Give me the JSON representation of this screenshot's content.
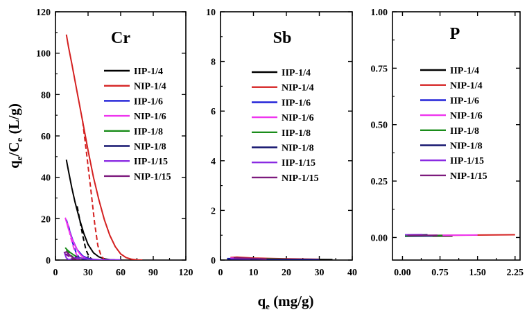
{
  "chart_data": {
    "type": "line",
    "ylabel": {
      "main": "q",
      "sub": "e",
      "mid": "/C",
      "sub2": "e",
      "tail": " (L/g)"
    },
    "xlabel": {
      "main": "q",
      "sub": "e",
      "tail": " (mg/g)"
    },
    "legend": [
      {
        "name": "IIP-1/4",
        "color": "#000000"
      },
      {
        "name": "NIP-1/4",
        "color": "#d42020"
      },
      {
        "name": "IIP-1/6",
        "color": "#1a1ad6"
      },
      {
        "name": "NIP-1/6",
        "color": "#ee35ee"
      },
      {
        "name": "IIP-1/8",
        "color": "#1a8c1a"
      },
      {
        "name": "NIP-1/8",
        "color": "#14146e"
      },
      {
        "name": "IIP-1/15",
        "color": "#8a2be2"
      },
      {
        "name": "NIP-1/15",
        "color": "#7d1a7d"
      }
    ],
    "panels": [
      {
        "title": "Cr",
        "xlim": [
          0,
          120
        ],
        "ylim": [
          0,
          120
        ],
        "xticks": [
          0,
          30,
          60,
          90,
          120
        ],
        "yticks": [
          0,
          20,
          40,
          60,
          80,
          100,
          120
        ],
        "series": [
          {
            "name": "IIP-1/4",
            "line": [
              [
                10,
                48.5
              ],
              [
                12,
                43
              ],
              [
                15,
                35
              ],
              [
                18,
                28
              ],
              [
                22,
                20
              ],
              [
                26,
                13
              ],
              [
                30,
                7.5
              ],
              [
                35,
                3.5
              ],
              [
                40,
                1.5
              ],
              [
                45,
                0.6
              ],
              [
                50,
                0.2
              ],
              [
                55,
                0.1
              ]
            ],
            "dashed": [
              [
                20,
                26
              ],
              [
                25,
                12
              ],
              [
                28,
                5
              ],
              [
                31,
                1.5
              ],
              [
                34,
                0.2
              ]
            ]
          },
          {
            "name": "NIP-1/4",
            "line": [
              [
                10,
                109
              ],
              [
                12,
                103
              ],
              [
                15,
                95
              ],
              [
                20,
                81
              ],
              [
                25,
                67
              ],
              [
                30,
                53
              ],
              [
                35,
                40
              ],
              [
                40,
                29
              ],
              [
                45,
                19.5
              ],
              [
                50,
                12
              ],
              [
                55,
                6.5
              ],
              [
                60,
                3
              ],
              [
                65,
                1.2
              ],
              [
                70,
                0.4
              ],
              [
                75,
                0.1
              ],
              [
                80,
                0
              ]
            ],
            "dashed": [
              [
                25,
                67
              ],
              [
                29,
                50
              ],
              [
                33,
                32
              ],
              [
                36,
                18
              ],
              [
                39,
                7
              ],
              [
                42,
                2
              ],
              [
                45,
                0.3
              ]
            ]
          },
          {
            "name": "IIP-1/6",
            "line": [
              [
                10,
                19.5
              ],
              [
                13,
                14
              ],
              [
                16,
                9.5
              ],
              [
                20,
                5
              ],
              [
                25,
                2
              ],
              [
                30,
                0.8
              ],
              [
                35,
                0.3
              ],
              [
                40,
                0.1
              ]
            ],
            "dashed": [
              [
                12,
                16.5
              ],
              [
                16,
                8
              ],
              [
                19,
                3.5
              ],
              [
                22,
                1
              ],
              [
                24,
                0.2
              ]
            ]
          },
          {
            "name": "NIP-1/6",
            "line": [
              [
                9,
                20.5
              ],
              [
                12,
                15
              ],
              [
                15,
                10.5
              ],
              [
                18,
                7
              ],
              [
                21,
                4
              ],
              [
                24,
                2
              ],
              [
                27,
                1
              ],
              [
                30,
                0.3
              ]
            ],
            "dashed": [
              [
                11,
                18
              ],
              [
                14,
                11
              ],
              [
                17,
                5.5
              ],
              [
                20,
                2
              ],
              [
                22,
                0.5
              ]
            ]
          },
          {
            "name": "IIP-1/8",
            "line": [
              [
                9,
                6
              ],
              [
                11,
                4.8
              ],
              [
                14,
                3.5
              ],
              [
                17,
                2.4
              ],
              [
                20,
                1.5
              ],
              [
                24,
                0.7
              ],
              [
                28,
                0.3
              ],
              [
                32,
                0.1
              ]
            ],
            "dashed": [
              [
                10,
                5
              ],
              [
                13,
                3
              ],
              [
                16,
                1.5
              ],
              [
                19,
                0.5
              ]
            ]
          },
          {
            "name": "NIP-1/8",
            "line": [
              [
                18,
                1.5
              ],
              [
                23,
                1
              ],
              [
                28,
                0.6
              ],
              [
                33,
                0.3
              ],
              [
                38,
                0.1
              ]
            ],
            "dashed": [
              [
                18,
                1.2
              ],
              [
                24,
                0.5
              ],
              [
                30,
                0.1
              ]
            ]
          },
          {
            "name": "IIP-1/15",
            "line": [
              [
                8,
                4
              ],
              [
                10,
                1
              ],
              [
                12,
                0.2
              ],
              [
                15,
                0.5
              ],
              [
                20,
                1
              ],
              [
                25,
                0.8
              ],
              [
                30,
                0.5
              ],
              [
                40,
                0.2
              ],
              [
                60,
                0.1
              ]
            ],
            "dashed": [
              [
                10,
                3
              ],
              [
                15,
                1.5
              ],
              [
                20,
                0.5
              ]
            ]
          },
          {
            "name": "NIP-1/15",
            "line": [
              [
                8,
                3.5
              ],
              [
                10,
                4
              ],
              [
                13,
                2.5
              ],
              [
                16,
                1
              ],
              [
                19,
                0.4
              ],
              [
                22,
                0.1
              ]
            ],
            "dashed": [
              [
                9,
                3
              ],
              [
                13,
                1.5
              ],
              [
                17,
                0.3
              ]
            ]
          }
        ]
      },
      {
        "title": "Sb",
        "xlim": [
          0,
          40
        ],
        "ylim": [
          0,
          10
        ],
        "xticks": [
          0,
          10,
          20,
          30,
          40
        ],
        "yticks": [
          0,
          2,
          4,
          6,
          8,
          10
        ],
        "series": [
          {
            "name": "IIP-1/4",
            "line": [
              [
                2,
                0.05
              ],
              [
                10,
                0.04
              ],
              [
                20,
                0.03
              ],
              [
                34,
                0.02
              ]
            ],
            "dashed": []
          },
          {
            "name": "NIP-1/4",
            "line": [
              [
                3,
                0.1
              ],
              [
                5,
                0.12
              ],
              [
                10,
                0.08
              ],
              [
                20,
                0.05
              ],
              [
                30,
                0.03
              ]
            ],
            "dashed": []
          },
          {
            "name": "IIP-1/6",
            "line": [
              [
                2,
                0.06
              ],
              [
                8,
                0.05
              ],
              [
                16,
                0.03
              ],
              [
                28,
                0.02
              ]
            ],
            "dashed": []
          },
          {
            "name": "NIP-1/6",
            "line": [
              [
                3,
                0.08
              ],
              [
                6,
                0.07
              ],
              [
                12,
                0.05
              ]
            ],
            "dashed": []
          },
          {
            "name": "IIP-1/8",
            "line": [
              [
                4,
                0.07
              ],
              [
                10,
                0.05
              ],
              [
                20,
                0.03
              ]
            ],
            "dashed": []
          },
          {
            "name": "NIP-1/8",
            "line": [
              [
                2,
                0.04
              ],
              [
                10,
                0.03
              ],
              [
                30,
                0.02
              ]
            ],
            "dashed": []
          },
          {
            "name": "IIP-1/15",
            "line": [
              [
                3,
                0.06
              ],
              [
                9,
                0.05
              ]
            ],
            "dashed": []
          },
          {
            "name": "NIP-1/15",
            "line": [
              [
                4,
                0.09
              ],
              [
                8,
                0.07
              ],
              [
                14,
                0.04
              ]
            ],
            "dashed": []
          }
        ]
      },
      {
        "title": "P",
        "xlim": [
          -0.2,
          2.35
        ],
        "ylim": [
          -0.1,
          1.0
        ],
        "xticks": [
          0.0,
          0.75,
          1.5,
          2.25
        ],
        "xtick_labels": [
          "0.00",
          "0.75",
          "1.50",
          "2.25"
        ],
        "yticks": [
          0.0,
          0.25,
          0.5,
          0.75,
          1.0
        ],
        "ytick_labels": [
          "0.00",
          "0.25",
          "0.50",
          "0.75",
          "1.00"
        ],
        "series": [
          {
            "name": "IIP-1/4",
            "line": [
              [
                0.05,
                0.005
              ],
              [
                0.5,
                0.006
              ],
              [
                1.0,
                0.007
              ]
            ],
            "dashed": []
          },
          {
            "name": "NIP-1/4",
            "line": [
              [
                0.1,
                0.008
              ],
              [
                1.0,
                0.01
              ],
              [
                2.25,
                0.012
              ]
            ],
            "dashed": []
          },
          {
            "name": "IIP-1/6",
            "line": [
              [
                0.05,
                0.006
              ],
              [
                0.6,
                0.007
              ]
            ],
            "dashed": []
          },
          {
            "name": "NIP-1/6",
            "line": [
              [
                0.1,
                0.009
              ],
              [
                1.5,
                0.011
              ]
            ],
            "dashed": []
          },
          {
            "name": "IIP-1/8",
            "line": [
              [
                0.05,
                0.007
              ],
              [
                0.8,
                0.009
              ]
            ],
            "dashed": []
          },
          {
            "name": "NIP-1/8",
            "line": [
              [
                0.1,
                0.01
              ],
              [
                0.5,
                0.012
              ]
            ],
            "dashed": []
          },
          {
            "name": "IIP-1/15",
            "line": [
              [
                0.05,
                0.012
              ],
              [
                0.4,
                0.013
              ]
            ],
            "dashed": []
          },
          {
            "name": "NIP-1/15",
            "line": [
              [
                0.1,
                0.009
              ],
              [
                0.7,
                0.01
              ]
            ],
            "dashed": []
          }
        ]
      }
    ]
  }
}
